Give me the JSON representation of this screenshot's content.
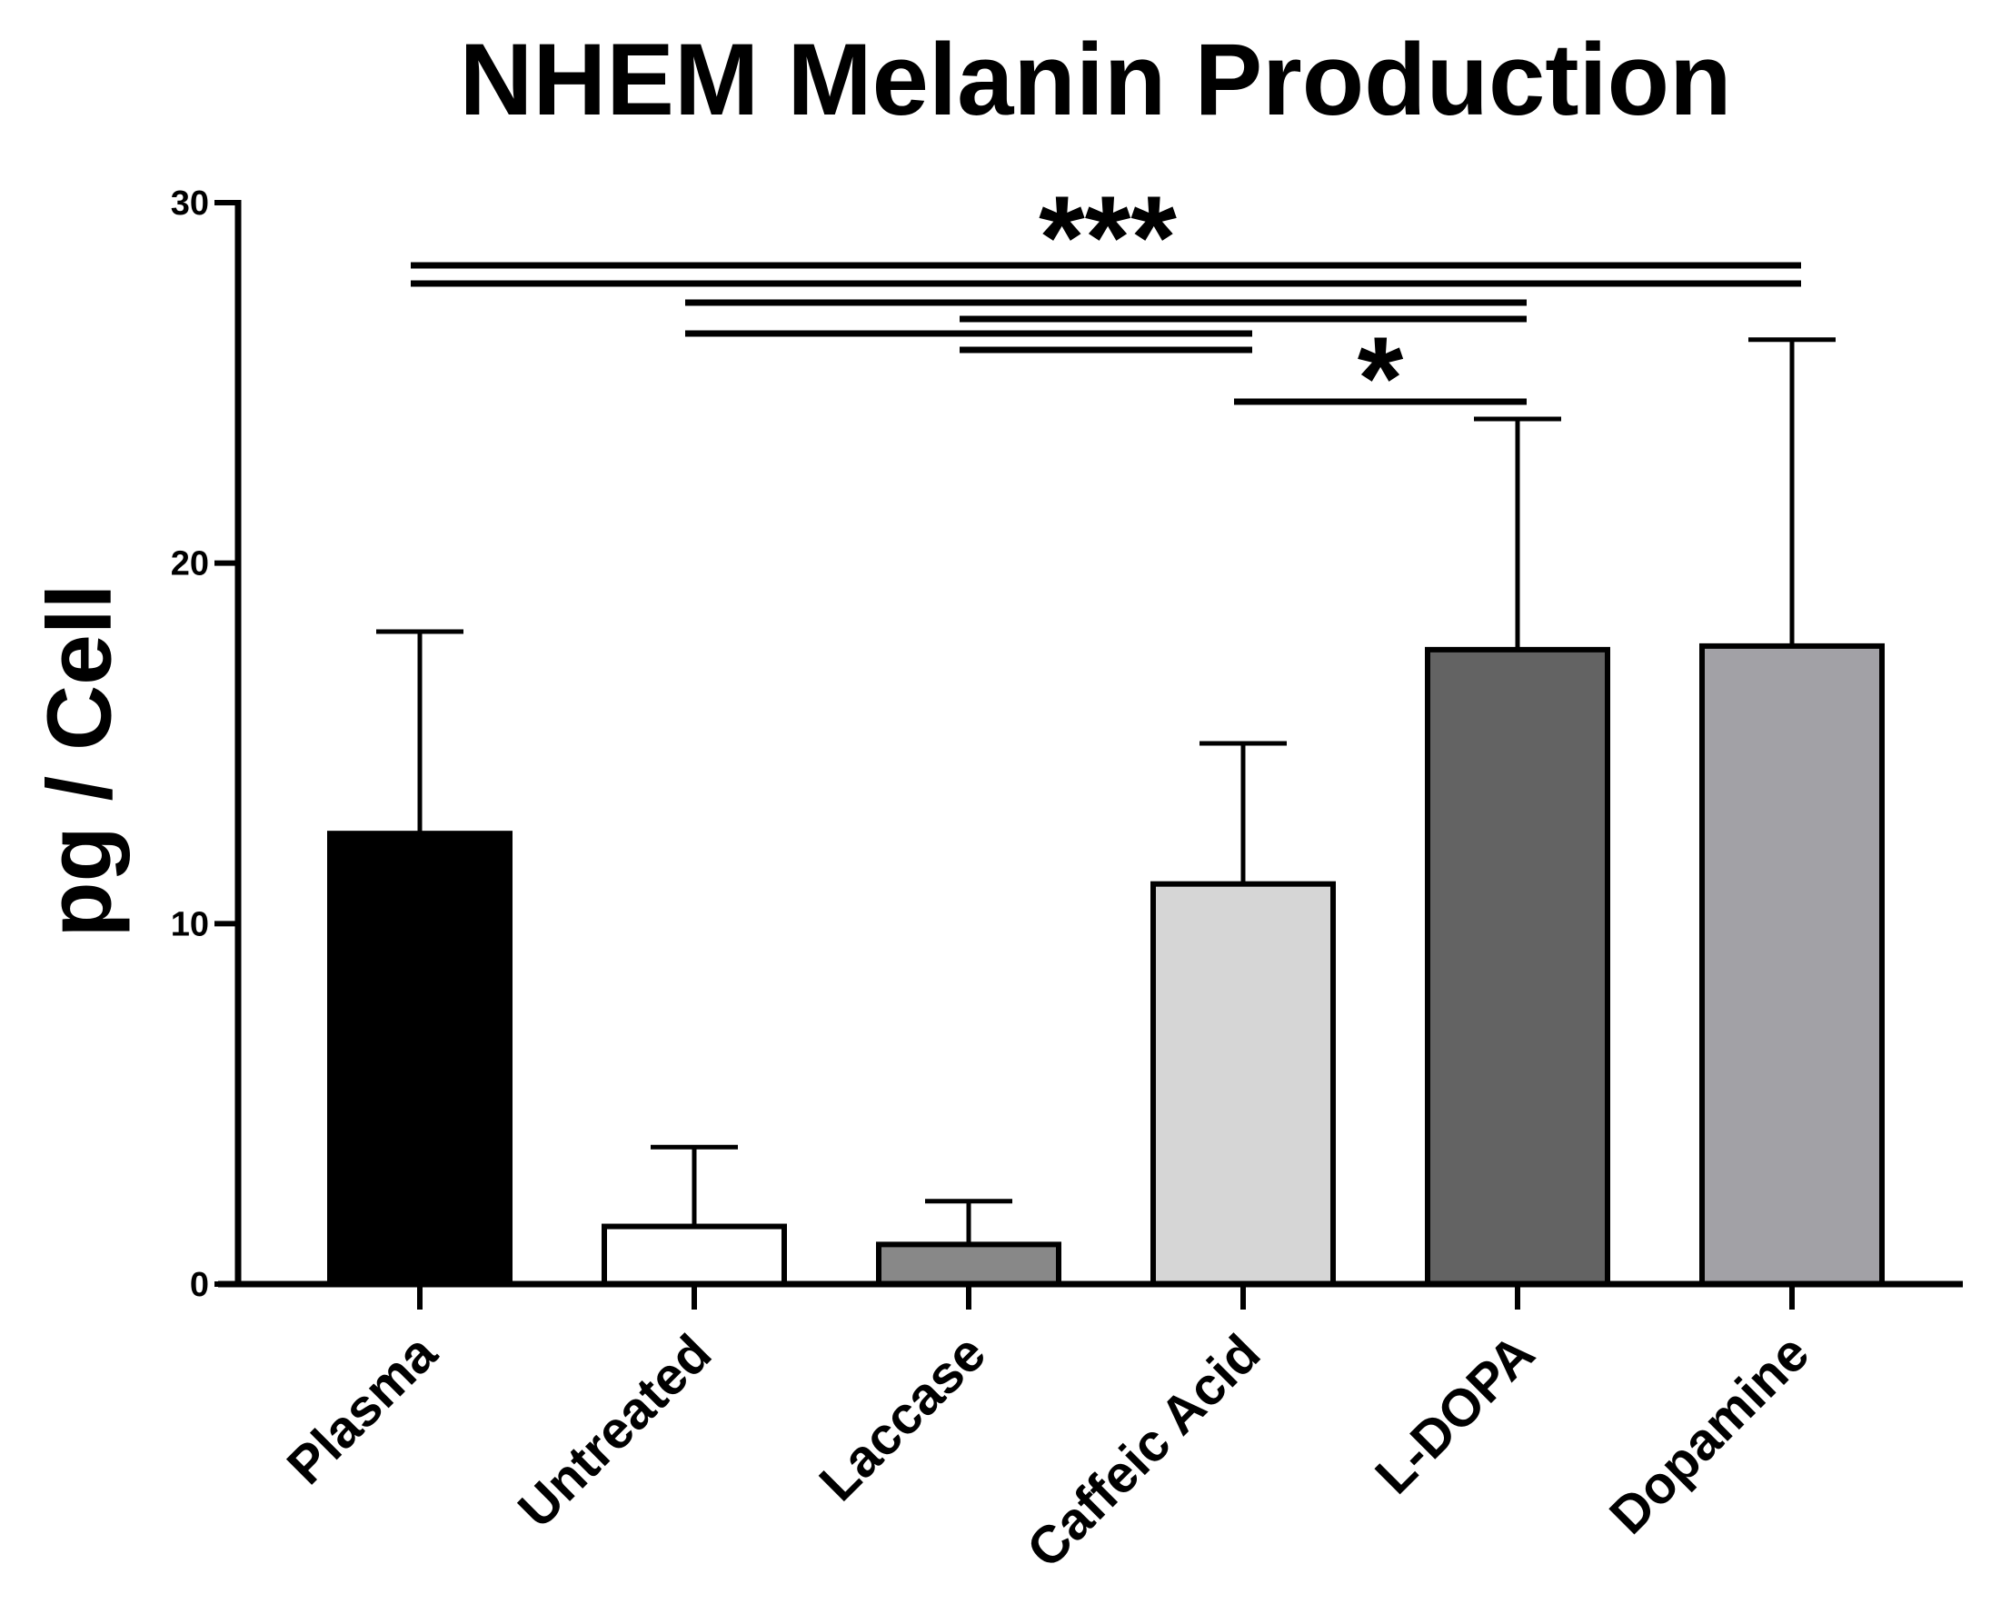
{
  "chart_data": {
    "type": "bar",
    "title": "NHEM Melanin Production",
    "ylabel": "pg / Cell",
    "xlabel": "",
    "ylim": [
      0,
      30
    ],
    "yticks": [
      0,
      10,
      20,
      30
    ],
    "categories": [
      "Plasma",
      "Untreated",
      "Laccase",
      "Caffeic Acid",
      "L-DOPA",
      "Dopamine"
    ],
    "values": [
      12.5,
      1.6,
      1.1,
      11.1,
      17.6,
      17.7
    ],
    "error_upper": [
      18.1,
      3.8,
      2.3,
      15.0,
      24.0,
      26.2
    ],
    "bar_colors": [
      "#000000",
      "#ffffff",
      "#888888",
      "#d6d6d6",
      "#636363",
      "#a2a1a6"
    ],
    "significance": [
      {
        "label": "***",
        "pairs": [
          [
            0,
            1
          ],
          [
            0,
            2
          ],
          [
            1,
            5
          ],
          [
            2,
            5
          ],
          [
            1,
            4
          ],
          [
            2,
            4
          ],
          [
            1,
            3
          ],
          [
            2,
            3
          ]
        ]
      },
      {
        "label": "*",
        "pairs": [
          [
            3,
            4
          ]
        ]
      }
    ]
  }
}
